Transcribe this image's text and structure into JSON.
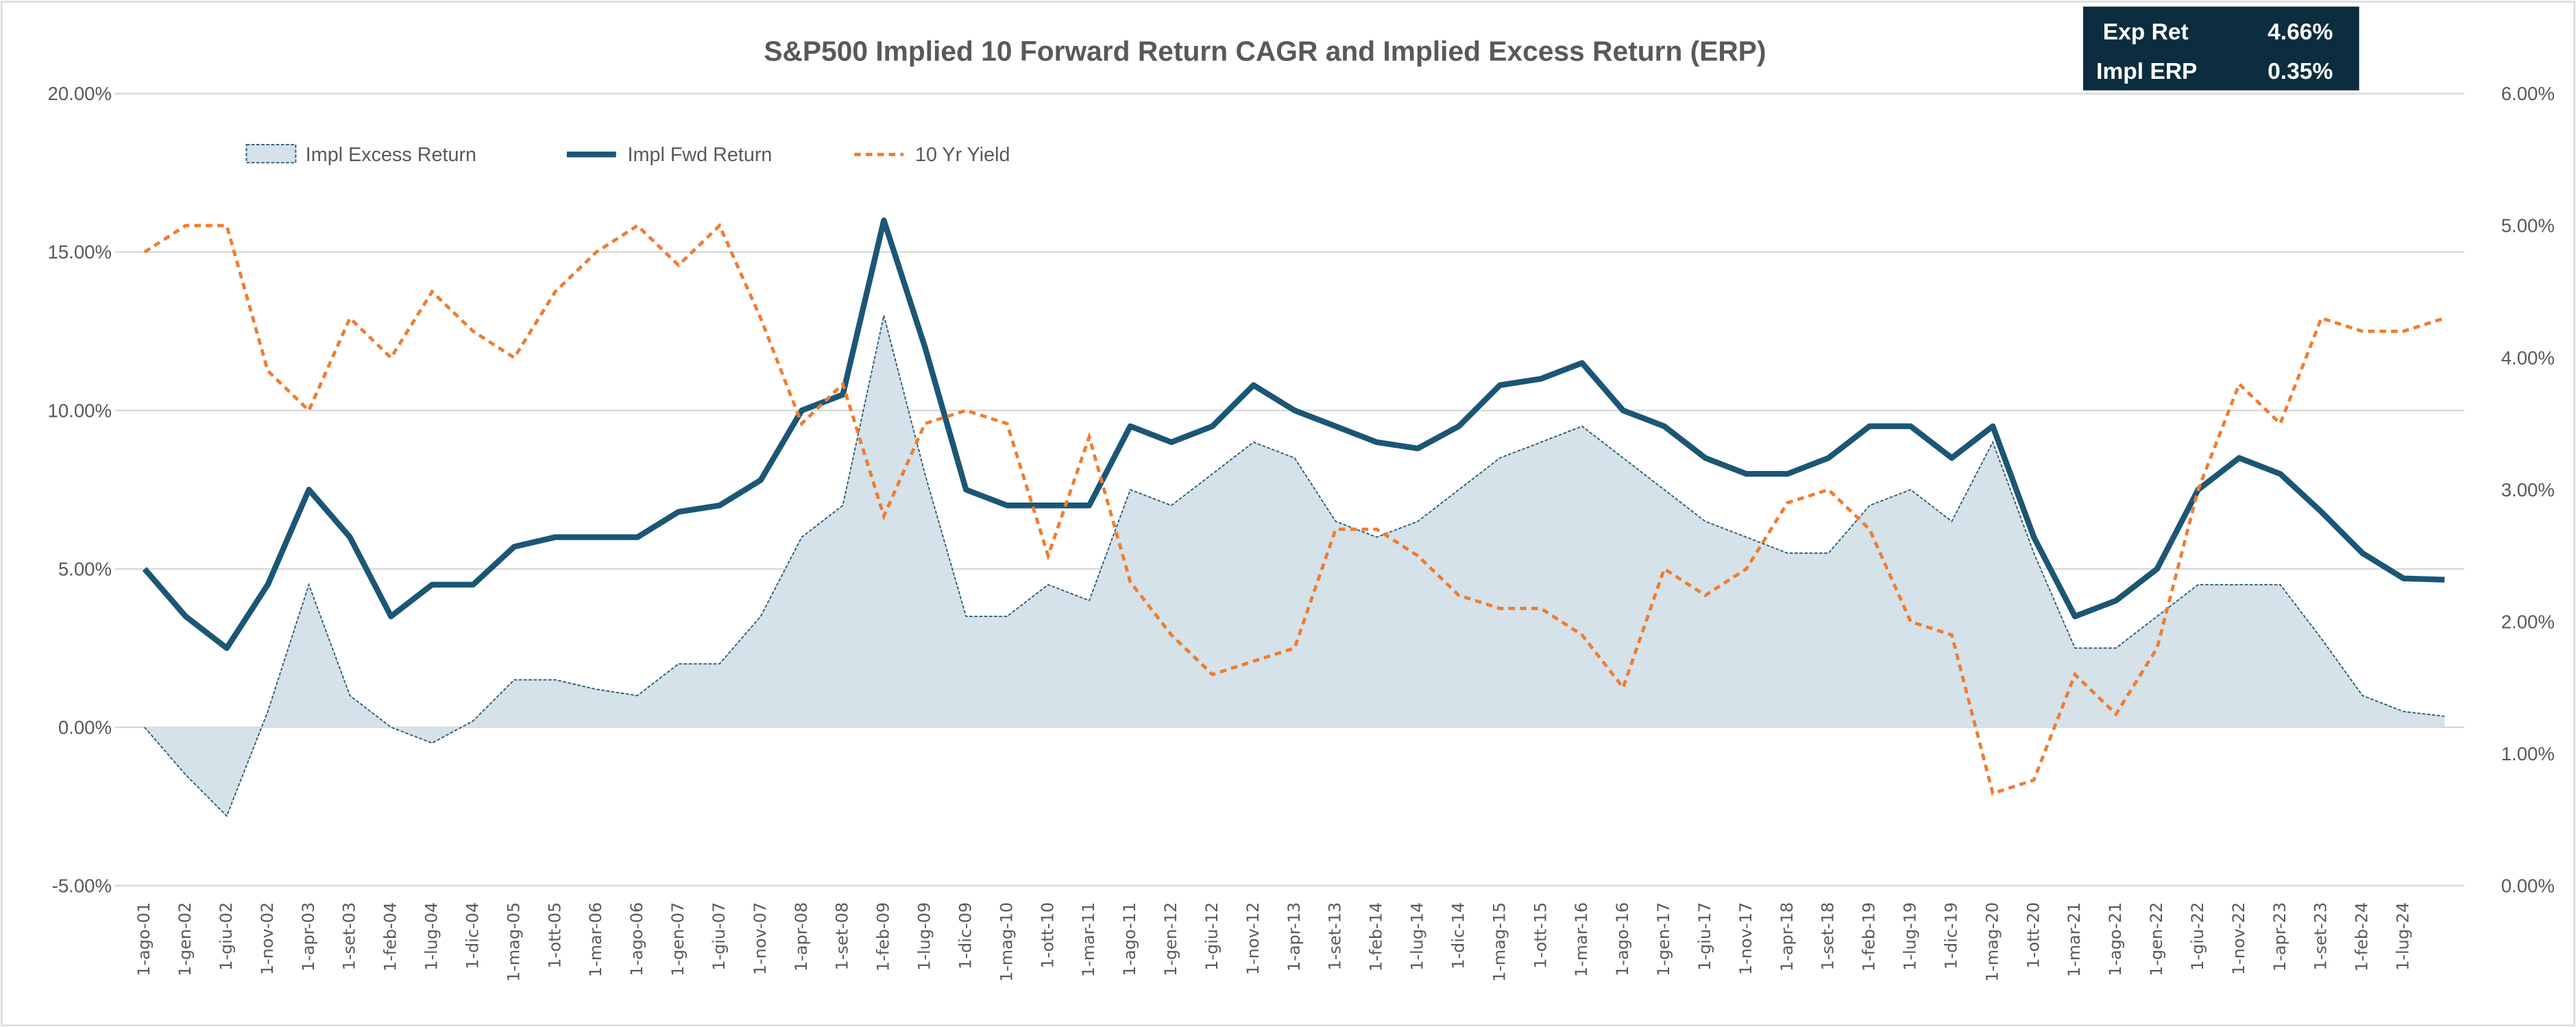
{
  "chart_data": {
    "type": "line",
    "title": "S&P500 Implied 10 Forward Return CAGR and Implied Excess Return (ERP)",
    "summary_box": [
      {
        "label": "Exp Ret",
        "value": "4.66%"
      },
      {
        "label": "Impl ERP",
        "value": "0.35%"
      }
    ],
    "colors": {
      "area_fill": "#d5e2e9",
      "area_line": "#2e5f7a",
      "fwd": "#1b5676",
      "yield": "#ef7d31",
      "box_bg": "#0c2d3f",
      "grid": "#d9d9d9"
    },
    "left_axis": {
      "min": -5,
      "max": 20,
      "ticks": [
        "-5.00%",
        "0.00%",
        "5.00%",
        "10.00%",
        "15.00%",
        "20.00%"
      ]
    },
    "right_axis": {
      "min": 0,
      "max": 6,
      "ticks": [
        "0.00%",
        "1.00%",
        "2.00%",
        "3.00%",
        "4.00%",
        "5.00%",
        "6.00%"
      ]
    },
    "x_tick_labels": [
      "1-ago-01",
      "1-gen-02",
      "1-giu-02",
      "1-nov-02",
      "1-apr-03",
      "1-set-03",
      "1-feb-04",
      "1-lug-04",
      "1-dic-04",
      "1-mag-05",
      "1-ott-05",
      "1-mar-06",
      "1-ago-06",
      "1-gen-07",
      "1-giu-07",
      "1-nov-07",
      "1-apr-08",
      "1-set-08",
      "1-feb-09",
      "1-lug-09",
      "1-dic-09",
      "1-mag-10",
      "1-ott-10",
      "1-mar-11",
      "1-ago-11",
      "1-gen-12",
      "1-giu-12",
      "1-nov-12",
      "1-apr-13",
      "1-set-13",
      "1-feb-14",
      "1-lug-14",
      "1-dic-14",
      "1-mag-15",
      "1-ott-15",
      "1-mar-16",
      "1-ago-16",
      "1-gen-17",
      "1-giu-17",
      "1-nov-17",
      "1-apr-18",
      "1-set-18",
      "1-feb-19",
      "1-lug-19",
      "1-dic-19",
      "1-mag-20",
      "1-ott-20",
      "1-mar-21",
      "1-ago-21",
      "1-gen-22",
      "1-giu-22",
      "1-nov-22",
      "1-apr-23",
      "1-set-23",
      "1-feb-24",
      "1-lug-24"
    ],
    "x_month_index": [
      0,
      5,
      10,
      15,
      20,
      25,
      30,
      35,
      40,
      45,
      50,
      55,
      60,
      65,
      70,
      75,
      80,
      85,
      90,
      95,
      100,
      105,
      110,
      115,
      120,
      125,
      130,
      135,
      140,
      145,
      150,
      155,
      160,
      165,
      170,
      175,
      180,
      185,
      190,
      195,
      200,
      205,
      210,
      215,
      220,
      225,
      230,
      235,
      240,
      245,
      250,
      255,
      260,
      265,
      270,
      275,
      280
    ],
    "series": [
      {
        "name": "Impl Excess Return",
        "axis": "left",
        "style": "area",
        "values": [
          0.0,
          -1.5,
          -2.8,
          0.5,
          4.5,
          1.0,
          0.0,
          -0.5,
          0.2,
          1.5,
          1.5,
          1.2,
          1.0,
          2.0,
          2.0,
          3.5,
          6.0,
          7.0,
          13.0,
          8.0,
          3.5,
          3.5,
          4.5,
          4.0,
          7.5,
          7.0,
          8.0,
          9.0,
          8.5,
          6.5,
          6.0,
          6.5,
          7.5,
          8.5,
          9.0,
          9.5,
          8.5,
          7.5,
          6.5,
          6.0,
          5.5,
          5.5,
          7.0,
          7.5,
          6.5,
          9.0,
          5.5,
          2.5,
          2.5,
          3.5,
          4.5,
          4.5,
          4.5,
          2.8,
          1.0,
          0.5,
          0.35
        ]
      },
      {
        "name": "Impl Fwd Return",
        "axis": "left",
        "style": "solid",
        "values": [
          5.0,
          3.5,
          2.5,
          4.5,
          7.5,
          6.0,
          3.5,
          4.5,
          4.5,
          5.7,
          6.0,
          6.0,
          6.0,
          6.8,
          7.0,
          7.8,
          10.0,
          10.5,
          16.0,
          12.0,
          7.5,
          7.0,
          7.0,
          7.0,
          9.5,
          9.0,
          9.5,
          10.8,
          10.0,
          9.5,
          9.0,
          8.8,
          9.5,
          10.8,
          11.0,
          11.5,
          10.0,
          9.5,
          8.5,
          8.0,
          8.0,
          8.5,
          9.5,
          9.5,
          8.5,
          9.5,
          6.0,
          3.5,
          4.0,
          5.0,
          7.5,
          8.5,
          8.0,
          6.8,
          5.5,
          4.7,
          4.66
        ]
      },
      {
        "name": "10 Yr Yield",
        "axis": "right",
        "style": "dashed",
        "values": [
          4.8,
          5.0,
          5.0,
          3.9,
          3.6,
          4.3,
          4.0,
          4.5,
          4.2,
          4.0,
          4.5,
          4.8,
          5.0,
          4.7,
          5.0,
          4.3,
          3.5,
          3.8,
          2.8,
          3.5,
          3.6,
          3.5,
          2.5,
          3.4,
          2.3,
          1.9,
          1.6,
          1.7,
          1.8,
          2.7,
          2.7,
          2.5,
          2.2,
          2.1,
          2.1,
          1.9,
          1.5,
          2.4,
          2.2,
          2.4,
          2.9,
          3.0,
          2.7,
          2.0,
          1.9,
          0.7,
          0.8,
          1.6,
          1.3,
          1.8,
          3.0,
          3.8,
          3.5,
          4.3,
          4.2,
          4.2,
          4.3
        ]
      }
    ],
    "legend": {
      "placement": "top-left",
      "entries": [
        "Impl Excess Return",
        "Impl Fwd Return",
        "10 Yr Yield"
      ]
    },
    "grid": true
  }
}
